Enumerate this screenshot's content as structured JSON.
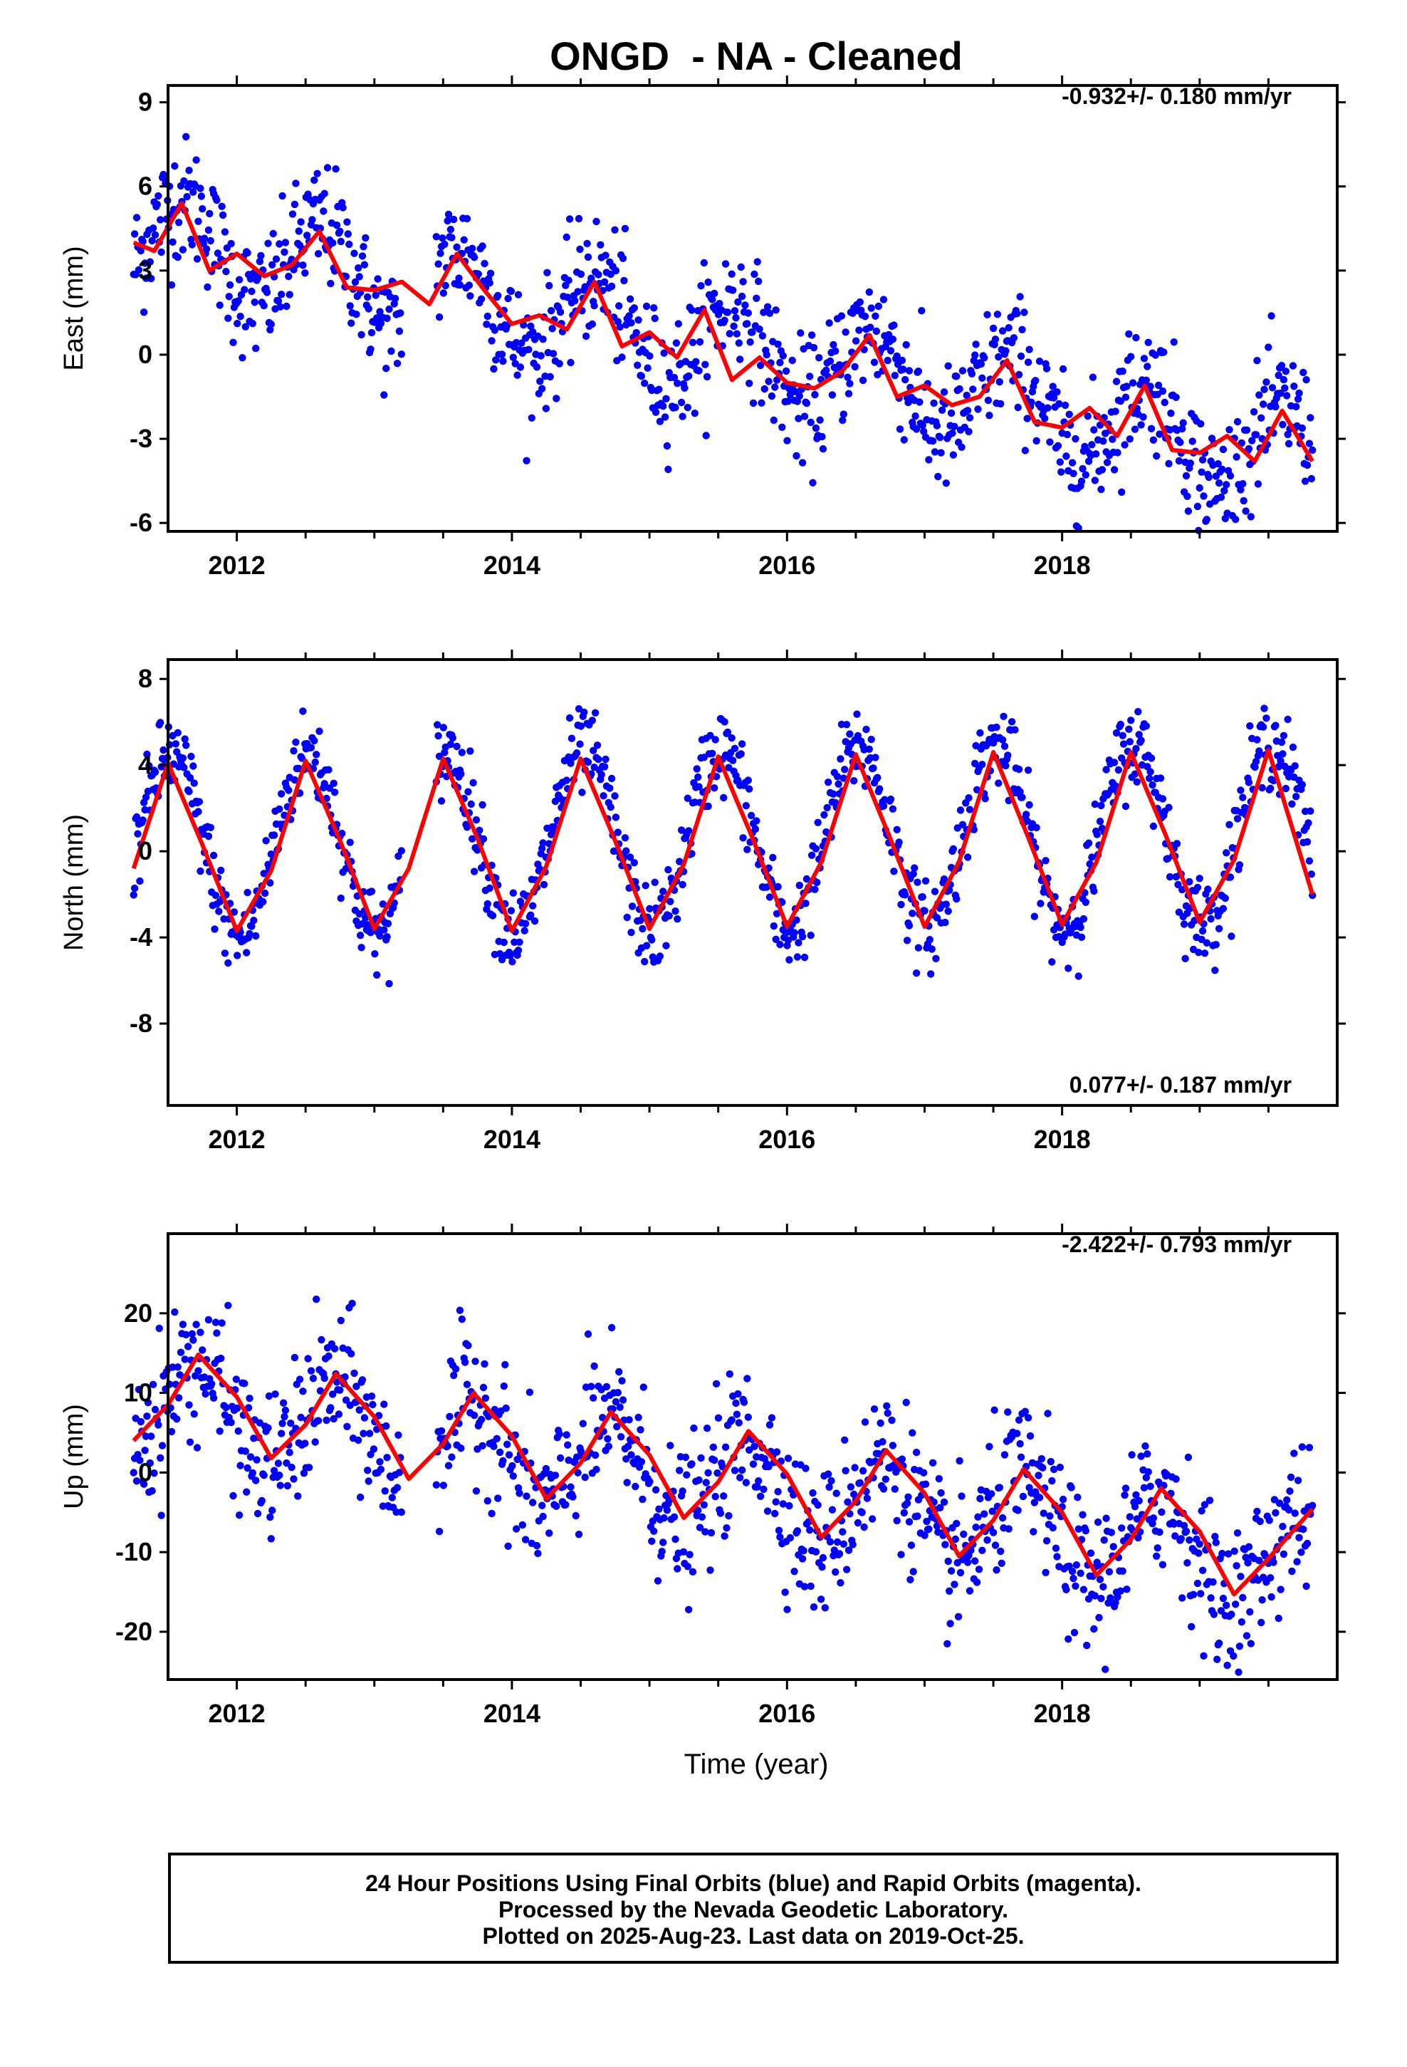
{
  "colors": {
    "points": "#0000ff",
    "fit": "#ff0000",
    "frame": "#000000"
  },
  "chart_data": {
    "title": "ONGD  - NA - Cleaned",
    "type": "scatter",
    "xlabel": "Time (year)",
    "xlim": [
      2011.5,
      2020.0
    ],
    "xticks": [
      "2012",
      "2014",
      "2016",
      "2018"
    ],
    "panels": [
      {
        "name": "east",
        "ylabel": "East (mm)",
        "ylim": [
          -6.3,
          9.6
        ],
        "yticks": [
          "-6",
          "-3",
          "0",
          "3",
          "6",
          "9"
        ],
        "rate": "-0.932+/- 0.180 mm/yr",
        "series": [
          {
            "kind": "points",
            "x_range": [
              2011.25,
              2019.82
            ],
            "trend": [
              4.3,
              -0.93
            ],
            "annual_amplitude": 1.6,
            "phase_peak": 0.62,
            "noise": 1.1
          },
          {
            "kind": "fit",
            "x": [
              2011.25,
              2011.4,
              2011.6,
              2011.8,
              2012.0,
              2012.2,
              2012.4,
              2012.6,
              2012.8,
              2013.0,
              2013.2,
              2013.4,
              2013.6,
              2013.8,
              2014.0,
              2014.2,
              2014.4,
              2014.6,
              2014.8,
              2015.0,
              2015.2,
              2015.4,
              2015.6,
              2015.8,
              2016.0,
              2016.2,
              2016.4,
              2016.6,
              2016.8,
              2017.0,
              2017.2,
              2017.4,
              2017.6,
              2017.8,
              2018.0,
              2018.2,
              2018.4,
              2018.6,
              2018.8,
              2019.0,
              2019.2,
              2019.4,
              2019.6,
              2019.82
            ],
            "y": [
              4.0,
              3.7,
              5.4,
              3.0,
              3.6,
              2.8,
              3.2,
              4.4,
              2.4,
              2.3,
              2.6,
              1.8,
              3.6,
              2.3,
              1.1,
              1.4,
              0.9,
              2.6,
              0.3,
              0.8,
              -0.1,
              1.6,
              -0.9,
              -0.1,
              -1.0,
              -1.2,
              -0.6,
              0.7,
              -1.5,
              -1.1,
              -1.8,
              -1.5,
              -0.2,
              -2.4,
              -2.6,
              -1.9,
              -2.9,
              -1.1,
              -3.4,
              -3.5,
              -2.9,
              -3.8,
              -2.0,
              -3.8
            ]
          }
        ]
      },
      {
        "name": "north",
        "ylabel": "North (mm)",
        "ylim": [
          -11.8,
          8.9
        ],
        "yticks": [
          "-8",
          "-4",
          "0",
          "4",
          "8"
        ],
        "rate": "0.077+/- 0.187 mm/yr",
        "series": [
          {
            "kind": "points",
            "x_range": [
              2011.25,
              2019.82
            ],
            "trend": [
              0.2,
              0.08
            ],
            "annual_amplitude": 4.2,
            "phase_peak": 0.52,
            "noise": 1.0
          },
          {
            "kind": "fit",
            "x": [
              2011.25,
              2011.5,
              2011.75,
              2012.0,
              2012.25,
              2012.5,
              2012.75,
              2013.0,
              2013.25,
              2013.5,
              2013.75,
              2014.0,
              2014.25,
              2014.5,
              2014.75,
              2015.0,
              2015.25,
              2015.5,
              2015.75,
              2016.0,
              2016.25,
              2016.5,
              2016.75,
              2017.0,
              2017.25,
              2017.5,
              2017.75,
              2018.0,
              2018.25,
              2018.5,
              2018.75,
              2019.0,
              2019.25,
              2019.5,
              2019.82
            ],
            "y": [
              -0.8,
              4.1,
              0.3,
              -3.7,
              -0.9,
              4.2,
              0.5,
              -3.6,
              -0.8,
              4.3,
              0.6,
              -3.7,
              -0.7,
              4.3,
              0.5,
              -3.6,
              -0.6,
              4.4,
              0.6,
              -3.5,
              -0.5,
              4.5,
              0.6,
              -3.5,
              -0.5,
              4.6,
              0.7,
              -3.4,
              -0.5,
              4.6,
              0.8,
              -3.3,
              -0.4,
              4.7,
              -2.0
            ]
          }
        ]
      },
      {
        "name": "up",
        "ylabel": "Up (mm)",
        "ylim": [
          -26.0,
          30.0
        ],
        "yticks": [
          "-20",
          "-10",
          "0",
          "10",
          "20"
        ],
        "rate": "-2.422+/- 0.793 mm/yr",
        "series": [
          {
            "kind": "points",
            "x_range": [
              2011.25,
              2019.82
            ],
            "trend": [
              9.0,
              -2.42
            ],
            "annual_amplitude": 6.0,
            "phase_peak": 0.72,
            "noise": 4.5
          },
          {
            "kind": "fit",
            "x": [
              2011.25,
              2011.5,
              2011.72,
              2012.0,
              2012.25,
              2012.5,
              2012.72,
              2013.0,
              2013.25,
              2013.5,
              2013.72,
              2014.0,
              2014.25,
              2014.5,
              2014.72,
              2015.0,
              2015.25,
              2015.5,
              2015.72,
              2016.0,
              2016.25,
              2016.5,
              2016.72,
              2017.0,
              2017.25,
              2017.5,
              2017.72,
              2018.0,
              2018.25,
              2018.5,
              2018.72,
              2019.0,
              2019.25,
              2019.5,
              2019.82
            ],
            "y": [
              4.0,
              8.5,
              14.8,
              9.5,
              1.8,
              6.0,
              12.4,
              7.0,
              -0.8,
              3.6,
              10.0,
              4.6,
              -3.3,
              1.2,
              7.6,
              2.2,
              -5.7,
              -1.2,
              5.2,
              -0.2,
              -8.1,
              -3.6,
              2.8,
              -2.6,
              -10.5,
              -6.0,
              0.4,
              -5.0,
              -12.9,
              -8.4,
              -2.0,
              -7.4,
              -15.3,
              -10.8,
              -4.6
            ]
          }
        ]
      }
    ],
    "legend": [
      "24 Hour Positions Using Final Orbits (blue) and Rapid Orbits (magenta).",
      "Processed by the Nevada Geodetic Laboratory.",
      "Plotted on 2025-Aug-23. Last data on 2019-Oct-25."
    ]
  }
}
